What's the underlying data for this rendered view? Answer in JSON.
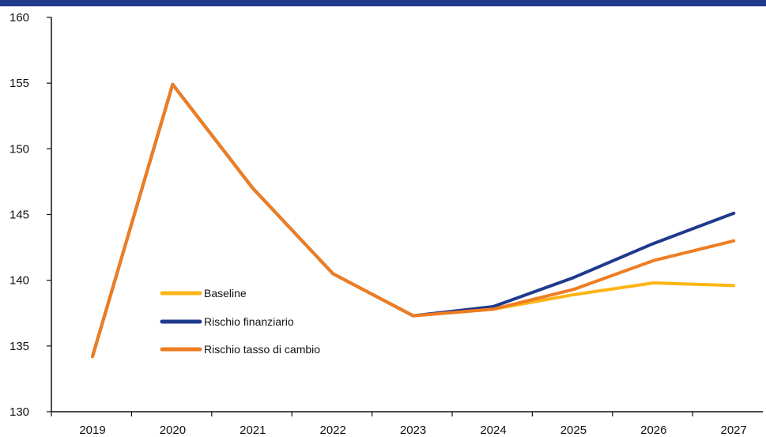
{
  "chart_data": {
    "type": "line",
    "title": "",
    "xlabel": "",
    "ylabel": "",
    "ylim": [
      130,
      160
    ],
    "yticks": [
      "130",
      "135",
      "140",
      "145",
      "150",
      "155",
      "160"
    ],
    "categories": [
      "2019",
      "2020",
      "2021",
      "2022",
      "2023",
      "2024",
      "2025",
      "2026",
      "2027"
    ],
    "grid": false,
    "legend_position": "left-center",
    "series": [
      {
        "name": "Baseline",
        "color": "#fdb515",
        "values": [
          134.2,
          154.9,
          147.0,
          140.5,
          137.3,
          137.8,
          138.9,
          139.8,
          139.6
        ]
      },
      {
        "name": "Rischio finanziario",
        "color": "#1f3a8c",
        "values": [
          134.2,
          154.9,
          147.0,
          140.5,
          137.3,
          138.0,
          140.2,
          142.8,
          145.1
        ]
      },
      {
        "name": "Rischio tasso di cambio",
        "color": "#ee7d22",
        "values": [
          134.2,
          154.9,
          147.0,
          140.5,
          137.3,
          137.8,
          139.3,
          141.5,
          143.0
        ]
      }
    ]
  }
}
